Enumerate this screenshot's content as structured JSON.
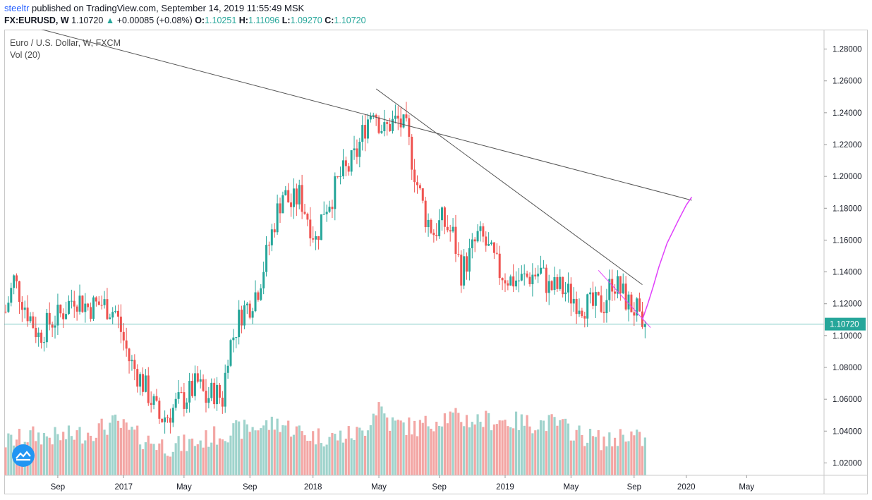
{
  "header": {
    "author": "steeltr",
    "published": "published on TradingView.com, September 14, 2019 11:55:49 MSK",
    "symbol": "FX:EURUSD, W",
    "last": "1.10720",
    "change": "+0.00085 (+0.08%)",
    "o_label": "O:",
    "o_value": "1.10251",
    "h_label": "H:",
    "h_value": "1.11096",
    "l_label": "L:",
    "l_value": "1.09270",
    "c_label": "C:",
    "c_value": "1.10720"
  },
  "legend": {
    "title": "Euro / U.S. Dollar, W, FXCM",
    "volume": "Vol (20)"
  },
  "colors": {
    "up": "#26a69a",
    "down": "#ef5350",
    "up_vol": "#9fd3cc",
    "down_vol": "#f3a6a4",
    "trend": "#555555",
    "projection": "#e040fb",
    "price_line": "#26a69a"
  },
  "chart_data": {
    "type": "candlestick",
    "ylim": [
      1.01,
      1.29
    ],
    "yticks": [
      "1.28000",
      "1.26000",
      "1.24000",
      "1.22000",
      "1.20000",
      "1.18000",
      "1.16000",
      "1.14000",
      "1.12000",
      "1.10000",
      "1.08000",
      "1.06000",
      "1.04000",
      "1.02000"
    ],
    "xticks": [
      "Sep",
      "2017",
      "May",
      "Sep",
      "2018",
      "May",
      "Sep",
      "2019",
      "May",
      "Sep",
      "2020",
      "May"
    ],
    "last_price_label": "1.10720",
    "path": [
      [
        0,
        1.115
      ],
      [
        3,
        1.135
      ],
      [
        8,
        1.115
      ],
      [
        12,
        1.1
      ],
      [
        16,
        1.108
      ],
      [
        20,
        1.113
      ],
      [
        25,
        1.125
      ],
      [
        30,
        1.118
      ],
      [
        35,
        1.12
      ],
      [
        40,
        1.115
      ],
      [
        45,
        1.085
      ],
      [
        50,
        1.07
      ],
      [
        53,
        1.06
      ],
      [
        56,
        1.048
      ],
      [
        59,
        1.05
      ],
      [
        62,
        1.056
      ],
      [
        66,
        1.062
      ],
      [
        70,
        1.07
      ],
      [
        73,
        1.06
      ],
      [
        76,
        1.065
      ],
      [
        79,
        1.06
      ],
      [
        81,
        1.09
      ],
      [
        83,
        1.1
      ],
      [
        86,
        1.115
      ],
      [
        89,
        1.12
      ],
      [
        92,
        1.13
      ],
      [
        95,
        1.15
      ],
      [
        98,
        1.172
      ],
      [
        101,
        1.19
      ],
      [
        104,
        1.182
      ],
      [
        107,
        1.188
      ],
      [
        110,
        1.175
      ],
      [
        113,
        1.16
      ],
      [
        116,
        1.18
      ],
      [
        119,
        1.188
      ],
      [
        122,
        1.2
      ],
      [
        125,
        1.205
      ],
      [
        128,
        1.215
      ],
      [
        131,
        1.232
      ],
      [
        134,
        1.245
      ],
      [
        136,
        1.235
      ],
      [
        138,
        1.228
      ],
      [
        140,
        1.233
      ],
      [
        143,
        1.235
      ],
      [
        146,
        1.228
      ],
      [
        150,
        1.195
      ],
      [
        153,
        1.175
      ],
      [
        156,
        1.165
      ],
      [
        159,
        1.172
      ],
      [
        163,
        1.163
      ],
      [
        166,
        1.14
      ],
      [
        169,
        1.15
      ],
      [
        172,
        1.162
      ],
      [
        174,
        1.16
      ],
      [
        177,
        1.15
      ],
      [
        180,
        1.14
      ],
      [
        184,
        1.135
      ],
      [
        188,
        1.135
      ],
      [
        192,
        1.138
      ],
      [
        195,
        1.14
      ],
      [
        198,
        1.13
      ],
      [
        202,
        1.13
      ],
      [
        206,
        1.125
      ],
      [
        210,
        1.12
      ],
      [
        214,
        1.118
      ],
      [
        218,
        1.12
      ],
      [
        221,
        1.135
      ],
      [
        224,
        1.128
      ],
      [
        227,
        1.12
      ],
      [
        230,
        1.115
      ],
      [
        232,
        1.098
      ],
      [
        233,
        1.107
      ]
    ],
    "volume_path": [
      [
        0,
        35
      ],
      [
        10,
        42
      ],
      [
        20,
        40
      ],
      [
        30,
        45
      ],
      [
        40,
        55
      ],
      [
        50,
        38
      ],
      [
        60,
        30
      ],
      [
        70,
        35
      ],
      [
        80,
        45
      ],
      [
        90,
        50
      ],
      [
        100,
        55
      ],
      [
        110,
        42
      ],
      [
        120,
        40
      ],
      [
        130,
        45
      ],
      [
        136,
        75
      ],
      [
        140,
        55
      ],
      [
        150,
        50
      ],
      [
        160,
        62
      ],
      [
        170,
        58
      ],
      [
        180,
        58
      ],
      [
        190,
        55
      ],
      [
        200,
        55
      ],
      [
        210,
        42
      ],
      [
        220,
        35
      ],
      [
        226,
        45
      ],
      [
        233,
        35
      ]
    ],
    "trendlines": [
      {
        "from": [
          -70,
          1.33
        ],
        "to": [
          250,
          1.185
        ]
      },
      {
        "from": [
          135,
          1.255
        ],
        "to": [
          232,
          1.132
        ]
      },
      {
        "from": [
          216,
          1.141
        ],
        "to": [
          235,
          1.105
        ]
      }
    ],
    "projection": [
      [
        232,
        1.11
      ],
      [
        234,
        1.12
      ],
      [
        236,
        1.131
      ],
      [
        238,
        1.143
      ],
      [
        241,
        1.158
      ],
      [
        245,
        1.172
      ],
      [
        248,
        1.182
      ],
      [
        250,
        1.187
      ]
    ]
  }
}
